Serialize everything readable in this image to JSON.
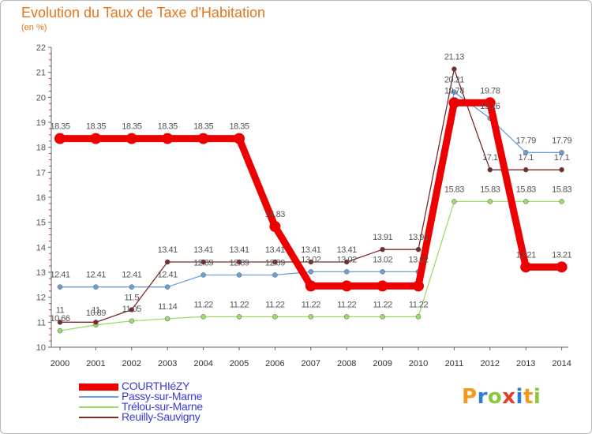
{
  "header": {
    "title": "Evolution du Taux de Taxe d'Habitation",
    "subtitle": "(en %)"
  },
  "logo": {
    "text": "Proxiti",
    "letters": [
      "P",
      "r",
      "o",
      "x",
      "i",
      "t",
      "i"
    ],
    "colors": [
      "#f39a1a",
      "#2a7ed4",
      "#8cc63f",
      "#e63c2c",
      "#2a7ed4",
      "#f39a1a",
      "#8cc63f"
    ]
  },
  "chart_data": {
    "type": "line",
    "title": "Evolution du Taux de Taxe d'Habitation",
    "ylabel": "(en %)",
    "xlabel": "",
    "ylim": [
      10,
      22
    ],
    "yticks": [
      "10",
      "11",
      "12",
      "13",
      "14",
      "15",
      "16",
      "17",
      "18",
      "19",
      "20",
      "21",
      "22"
    ],
    "categories": [
      "2000",
      "2001",
      "2002",
      "2003",
      "2004",
      "2005",
      "2006",
      "2007",
      "2008",
      "2009",
      "2010",
      "2011",
      "2012",
      "2013",
      "2014"
    ],
    "grid": false,
    "series": [
      {
        "name": "COURTHIéZY",
        "color": "#ee0000",
        "thick": true,
        "values": [
          18.35,
          18.35,
          18.35,
          18.35,
          18.35,
          18.35,
          14.83,
          12.45,
          12.45,
          12.45,
          12.45,
          19.78,
          19.78,
          13.21,
          13.21
        ],
        "labels": [
          "18.35",
          "18.35",
          "18.35",
          "18.35",
          "18.35",
          "18.35",
          "14.83",
          "",
          "",
          "",
          "",
          "19.78",
          "19.78",
          "13.21",
          "13.21"
        ]
      },
      {
        "name": "Passy-sur-Marne",
        "color": "#6a9fd8",
        "thick": false,
        "values": [
          12.41,
          12.41,
          12.41,
          12.41,
          12.89,
          12.89,
          12.89,
          13.02,
          13.02,
          13.02,
          13.02,
          20.21,
          19.16,
          17.79,
          17.79
        ],
        "labels": [
          "12.41",
          "12.41",
          "12.41",
          "12.41",
          "12.89",
          "12.89",
          "12.89",
          "13.02",
          "13.02",
          "13.02",
          "13.02",
          "20.21",
          "19.16",
          "17.79",
          "17.79"
        ]
      },
      {
        "name": "Trélou-sur-Marne",
        "color": "#99dd66",
        "thick": false,
        "values": [
          10.66,
          10.89,
          11.05,
          11.14,
          11.22,
          11.22,
          11.22,
          11.22,
          11.22,
          11.22,
          11.22,
          15.83,
          15.83,
          15.83,
          15.83
        ],
        "labels": [
          "10.66",
          "10.89",
          "11.05",
          "11.14",
          "11.22",
          "11.22",
          "11.22",
          "11.22",
          "11.22",
          "11.22",
          "11.22",
          "15.83",
          "15.83",
          "15.83",
          "15.83"
        ]
      },
      {
        "name": "Reuilly-Sauvigny",
        "color": "#7a2a2a",
        "thick": false,
        "values": [
          11,
          11,
          11.5,
          13.41,
          13.41,
          13.41,
          13.41,
          13.41,
          13.41,
          13.91,
          13.91,
          21.13,
          17.1,
          17.1,
          17.1
        ],
        "labels": [
          "11",
          "11",
          "11.5",
          "13.41",
          "13.41",
          "13.41",
          "13.41",
          "13.41",
          "13.41",
          "13.91",
          "13.91",
          "21.13",
          "17.1",
          "17.1",
          "17.1"
        ]
      }
    ],
    "legend": {
      "position": "bottom-left",
      "entries": [
        "COURTHIéZY",
        "Passy-sur-Marne",
        "Trélou-sur-Marne",
        "Reuilly-Sauvigny"
      ]
    }
  }
}
